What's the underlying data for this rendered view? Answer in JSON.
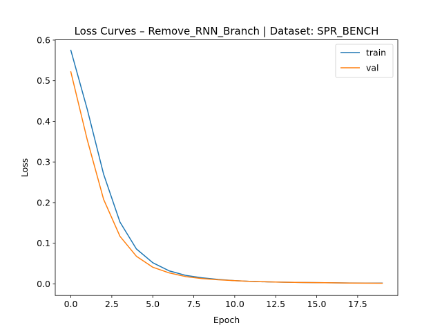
{
  "chart_data": {
    "type": "line",
    "title": "Loss Curves – Remove_RNN_Branch | Dataset: SPR_BENCH",
    "xlabel": "Epoch",
    "ylabel": "Loss",
    "xlim": [
      -0.95,
      19.95
    ],
    "ylim": [
      -0.0286,
      0.6006
    ],
    "xticks": [
      "0.0",
      "2.5",
      "5.0",
      "7.5",
      "10.0",
      "12.5",
      "15.0",
      "17.5"
    ],
    "yticks": [
      "0.0",
      "0.1",
      "0.2",
      "0.3",
      "0.4",
      "0.5",
      "0.6"
    ],
    "grid": false,
    "legend_position": "top-right",
    "x": [
      0,
      1,
      2,
      3,
      4,
      5,
      6,
      7,
      8,
      9,
      10,
      11,
      12,
      13,
      14,
      15,
      16,
      17,
      18,
      19
    ],
    "series": [
      {
        "name": "train",
        "color": "#1f77b4",
        "values": [
          0.575,
          0.43,
          0.27,
          0.152,
          0.086,
          0.052,
          0.032,
          0.021,
          0.015,
          0.011,
          0.008,
          0.006,
          0.005,
          0.004,
          0.0035,
          0.003,
          0.0025,
          0.0022,
          0.002,
          0.002
        ]
      },
      {
        "name": "val",
        "color": "#ff7f0e",
        "values": [
          0.522,
          0.355,
          0.208,
          0.117,
          0.068,
          0.041,
          0.027,
          0.018,
          0.013,
          0.01,
          0.008,
          0.006,
          0.005,
          0.004,
          0.0035,
          0.003,
          0.0025,
          0.002,
          0.0018,
          0.0015
        ]
      }
    ]
  }
}
